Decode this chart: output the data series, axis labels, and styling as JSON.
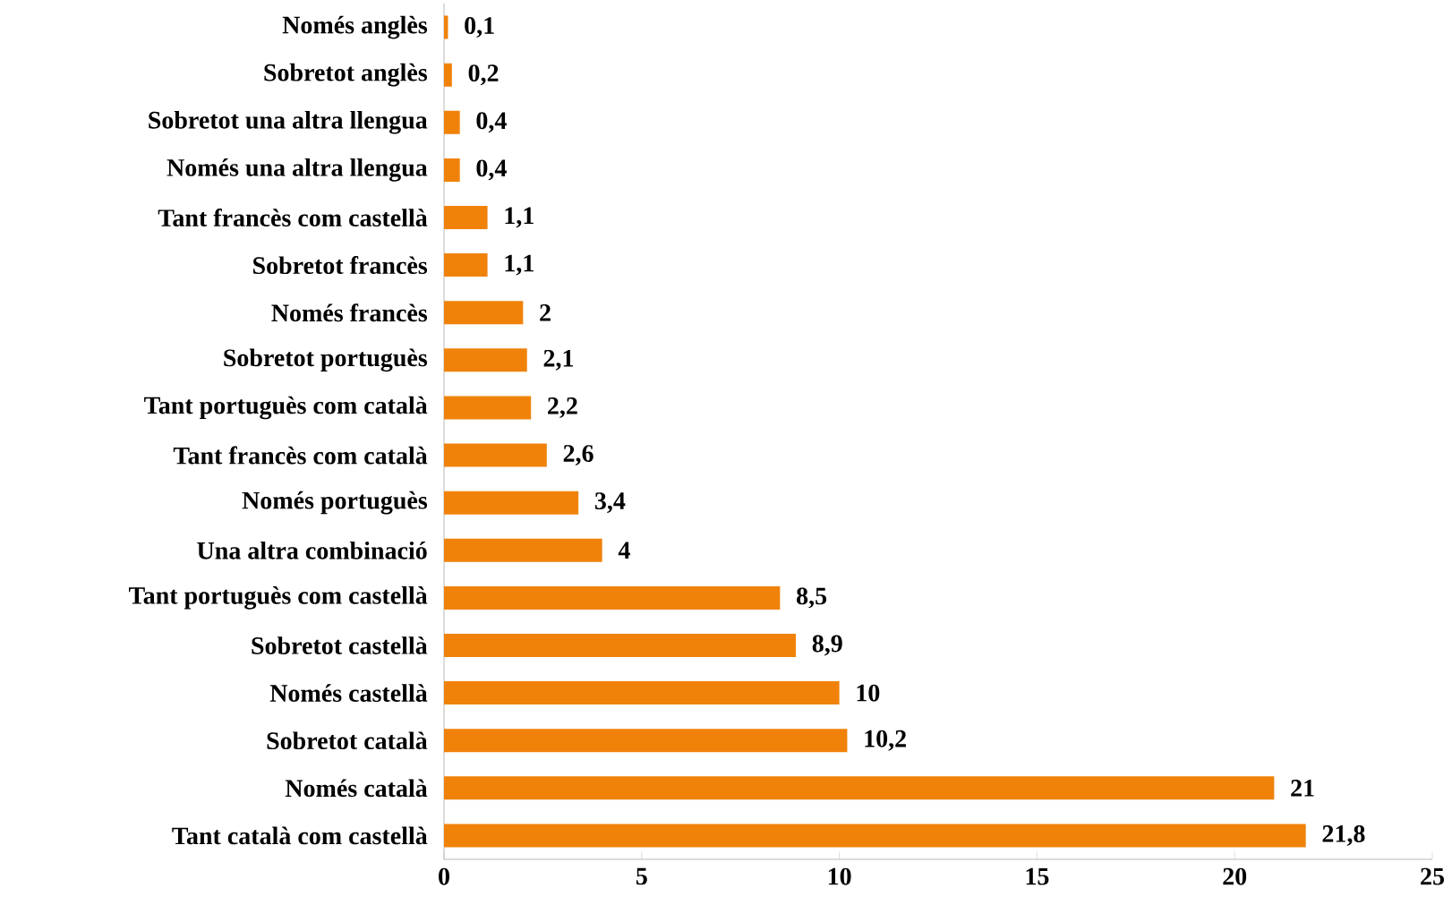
{
  "chart_data": {
    "type": "bar",
    "orientation": "horizontal",
    "categories": [
      "Només anglès",
      "Sobretot anglès",
      "Sobretot una altra llengua",
      "Només una altra llengua",
      "Tant francès com castellà",
      "Sobretot francès",
      "Només francès",
      "Sobretot portuguès",
      "Tant portuguès com català",
      "Tant francès com català",
      "Només portuguès",
      "Una altra combinació",
      "Tant portuguès com castellà",
      "Sobretot castellà",
      "Només castellà",
      "Sobretot català",
      "Només català",
      "Tant català com castellà"
    ],
    "values": [
      0.1,
      0.2,
      0.4,
      0.4,
      1.1,
      1.1,
      2,
      2.1,
      2.2,
      2.6,
      3.4,
      4,
      8.5,
      8.9,
      10,
      10.2,
      21,
      21.8
    ],
    "value_labels": [
      "0,1",
      "0,2",
      "0,4",
      "0,4",
      "1,1",
      "1,1",
      "2",
      "2,1",
      "2,2",
      "2,6",
      "3,4",
      "4",
      "8,5",
      "8,9",
      "10",
      "10,2",
      "21",
      "21,8"
    ],
    "color": "#f0820a",
    "xlim": [
      0,
      25
    ],
    "xticks": [
      0,
      5,
      10,
      15,
      20,
      25
    ],
    "grid": false
  }
}
